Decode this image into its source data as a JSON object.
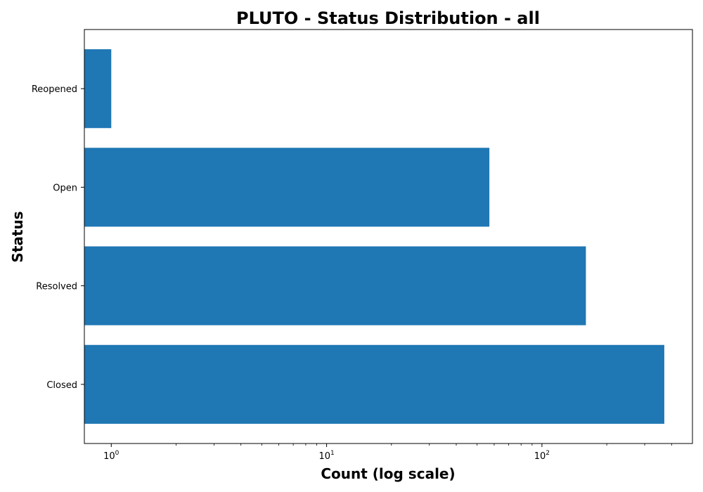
{
  "chart_data": {
    "type": "bar",
    "orientation": "horizontal",
    "title": "PLUTO - Status Distribution - all",
    "xlabel": "Count (log scale)",
    "ylabel": "Status",
    "x_scale": "log",
    "xlim": [
      0.75,
      500
    ],
    "categories": [
      "Closed",
      "Resolved",
      "Open",
      "Reopened"
    ],
    "values": [
      370,
      160,
      57,
      1
    ],
    "x_ticks": [
      {
        "value": 1,
        "base": "10",
        "exp": "0"
      },
      {
        "value": 10,
        "base": "10",
        "exp": "1"
      },
      {
        "value": 100,
        "base": "10",
        "exp": "2"
      }
    ],
    "bar_color": "#1f77b4",
    "grid": false,
    "legend": "none"
  }
}
